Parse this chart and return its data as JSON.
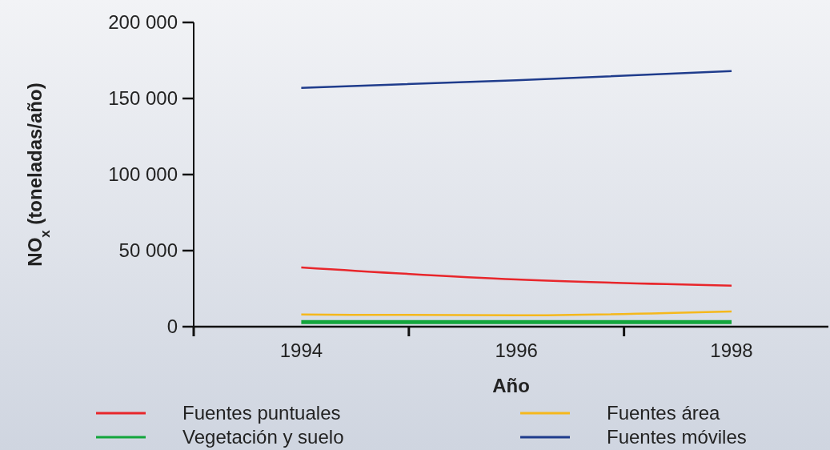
{
  "chart_data": {
    "type": "line",
    "xlabel": "Año",
    "ylabel": "NO$_{x}$ (toneladas/año)",
    "x": [
      1994,
      1996,
      1998
    ],
    "xlim": [
      1993,
      1998.9
    ],
    "xticks": [
      {
        "value": 1993,
        "label": null
      },
      1994,
      {
        "value": 1995,
        "label": null
      },
      1996,
      {
        "value": 1997,
        "label": null
      },
      1998
    ],
    "ylim": [
      0,
      200000
    ],
    "yticks": [
      {
        "value": 0,
        "label": "0"
      },
      {
        "value": 50000,
        "label": "50 000"
      },
      {
        "value": 100000,
        "label": "100 000"
      },
      {
        "value": 150000,
        "label": "150 000"
      },
      {
        "value": 200000,
        "label": "200 000"
      }
    ],
    "series": [
      {
        "name": "Fuentes puntuales",
        "color": "#e8262b",
        "values": [
          39000,
          31000,
          27000
        ]
      },
      {
        "name": "Fuentes área",
        "color": "#f5b81c",
        "values": [
          8000,
          7500,
          10000
        ]
      },
      {
        "name": "Vegetación y suelo",
        "color": "#13a53c",
        "values": [
          3000,
          3000,
          3000
        ]
      },
      {
        "name": "Fuentes móviles",
        "color": "#1f3c8c",
        "values": [
          157000,
          162000,
          168000
        ]
      }
    ],
    "legend": "bottom",
    "grid": false,
    "marker": "none",
    "line_style": "solid"
  }
}
